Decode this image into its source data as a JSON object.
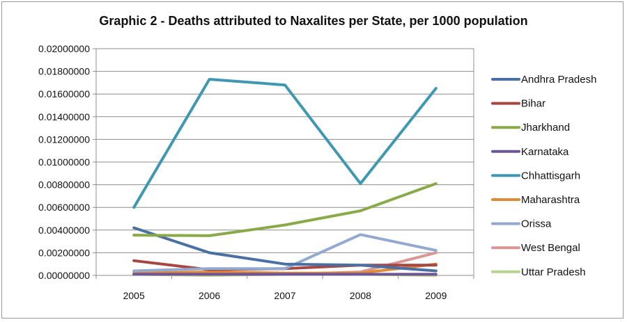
{
  "chart_data": {
    "type": "line",
    "title": "Graphic 2 - Deaths attributed to Naxalites per State, per 1000 population",
    "xlabel": "",
    "ylabel": "",
    "categories": [
      "2005",
      "2006",
      "2007",
      "2008",
      "2009"
    ],
    "ylim": [
      0,
      0.02
    ],
    "yticks": [
      "0.00000000",
      "0.00200000",
      "0.00400000",
      "0.00600000",
      "0.00800000",
      "0.01000000",
      "0.01200000",
      "0.01400000",
      "0.01600000",
      "0.01800000",
      "0.02000000"
    ],
    "legend_position": "right",
    "series": [
      {
        "name": "Andhra Pradesh",
        "color": "#4a6fa3",
        "values": [
          0.0042,
          0.002,
          0.001,
          0.0009,
          0.0004
        ]
      },
      {
        "name": "Bihar",
        "color": "#a64744",
        "values": [
          0.0013,
          0.0005,
          0.0006,
          0.0009,
          0.0009
        ]
      },
      {
        "name": "Jharkhand",
        "color": "#8aaa4a",
        "values": [
          0.00355,
          0.0035,
          0.00445,
          0.0057,
          0.0081
        ]
      },
      {
        "name": "Karnataka",
        "color": "#6e5596",
        "values": [
          0.0001,
          0.0001,
          0.0001,
          0.0001,
          0.0001
        ]
      },
      {
        "name": "Chhattisgarh",
        "color": "#3f98b0",
        "values": [
          0.006,
          0.0173,
          0.0168,
          0.0081,
          0.0165
        ]
      },
      {
        "name": "Maharashtra",
        "color": "#e08a37",
        "values": [
          0.0002,
          0.0003,
          0.0002,
          0.0002,
          0.001
        ]
      },
      {
        "name": "Orissa",
        "color": "#93a9cf",
        "values": [
          0.0004,
          0.0006,
          0.0006,
          0.0036,
          0.0022
        ]
      },
      {
        "name": "West Bengal",
        "color": "#d99694",
        "values": [
          0.0001,
          0.0001,
          0.0001,
          0.0003,
          0.002
        ]
      },
      {
        "name": "Uttar Pradesh",
        "color": "#b9d38e",
        "values": [
          0.0001,
          0.0,
          0.0001,
          0.0001,
          0.0
        ]
      }
    ]
  }
}
